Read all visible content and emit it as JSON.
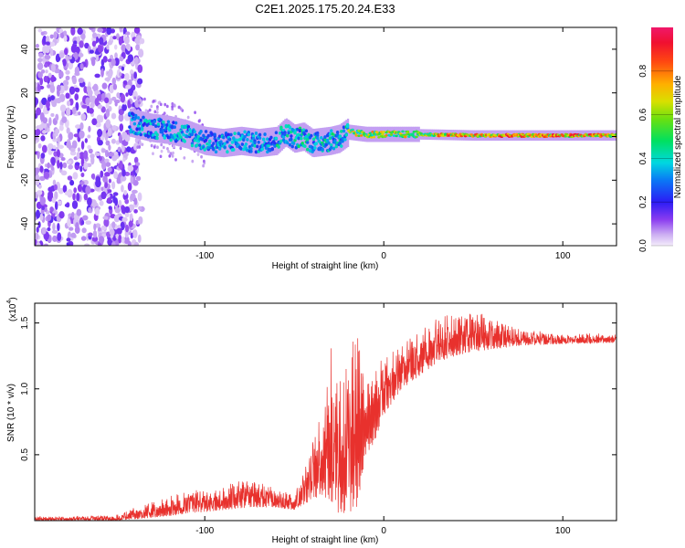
{
  "title": "C2E1.2025.175.20.24.E33",
  "chart_data": [
    {
      "type": "heatmap",
      "xlabel": "Height of straight line (km)",
      "ylabel": "Frequency (Hz)",
      "xlim": [
        -195,
        130
      ],
      "ylim": [
        -50,
        50
      ],
      "x_ticks": [
        -100,
        0,
        100
      ],
      "y_ticks": [
        -40,
        -20,
        0,
        20,
        40
      ],
      "ridge": [
        {
          "x": -140,
          "f": 6
        },
        {
          "x": -130,
          "f": 4
        },
        {
          "x": -120,
          "f": 3
        },
        {
          "x": -110,
          "f": 1
        },
        {
          "x": -100,
          "f": -2
        },
        {
          "x": -90,
          "f": -3
        },
        {
          "x": -80,
          "f": -2
        },
        {
          "x": -70,
          "f": -3
        },
        {
          "x": -60,
          "f": -2
        },
        {
          "x": -55,
          "f": 2
        },
        {
          "x": -50,
          "f": -1
        },
        {
          "x": -45,
          "f": 0
        },
        {
          "x": -40,
          "f": -3
        },
        {
          "x": -30,
          "f": -2
        },
        {
          "x": -25,
          "f": -1
        },
        {
          "x": -20,
          "f": 2
        },
        {
          "x": -10,
          "f": 1
        },
        {
          "x": 0,
          "f": 1
        },
        {
          "x": 20,
          "f": 1
        },
        {
          "x": 50,
          "f": 0.5
        },
        {
          "x": 80,
          "f": 0.5
        },
        {
          "x": 130,
          "f": 0.5
        }
      ],
      "colorbar": {
        "label": "Normalized spectral amplitude",
        "ticks": [
          "0.0",
          "0.2",
          "0.4",
          "0.6",
          "0.8"
        ],
        "range": [
          0,
          1
        ]
      }
    },
    {
      "type": "line",
      "xlabel": "Height of straight line (km)",
      "ylabel": "SNR (10 * v/v)",
      "y_multiplier_label": "(x10",
      "y_multiplier_exp": "4",
      "xlim": [
        -195,
        130
      ],
      "ylim": [
        0,
        1.65
      ],
      "x_ticks": [
        -100,
        0,
        100
      ],
      "y_ticks": [
        0.5,
        1.0,
        1.5
      ],
      "y_tick_labels": [
        "0.5",
        "1.0",
        "1.5"
      ],
      "color": "#e8312d",
      "envelope": [
        {
          "x": -195,
          "lo": 0.0,
          "hi": 0.03
        },
        {
          "x": -150,
          "lo": 0.0,
          "hi": 0.04
        },
        {
          "x": -130,
          "lo": 0.02,
          "hi": 0.15
        },
        {
          "x": -110,
          "lo": 0.05,
          "hi": 0.22
        },
        {
          "x": -90,
          "lo": 0.08,
          "hi": 0.27
        },
        {
          "x": -75,
          "lo": 0.1,
          "hi": 0.32
        },
        {
          "x": -60,
          "lo": 0.1,
          "hi": 0.25
        },
        {
          "x": -50,
          "lo": 0.08,
          "hi": 0.2
        },
        {
          "x": -45,
          "lo": 0.12,
          "hi": 0.35
        },
        {
          "x": -40,
          "lo": 0.15,
          "hi": 0.6
        },
        {
          "x": -35,
          "lo": 0.2,
          "hi": 0.85
        },
        {
          "x": -30,
          "lo": 0.15,
          "hi": 1.35
        },
        {
          "x": -25,
          "lo": 0.05,
          "hi": 1.2
        },
        {
          "x": -20,
          "lo": 0.05,
          "hi": 1.4
        },
        {
          "x": -15,
          "lo": 0.1,
          "hi": 1.5
        },
        {
          "x": -10,
          "lo": 0.5,
          "hi": 1.15
        },
        {
          "x": -5,
          "lo": 0.6,
          "hi": 1.2
        },
        {
          "x": 0,
          "lo": 0.8,
          "hi": 1.25
        },
        {
          "x": 10,
          "lo": 1.0,
          "hi": 1.35
        },
        {
          "x": 20,
          "lo": 1.1,
          "hi": 1.45
        },
        {
          "x": 30,
          "lo": 1.2,
          "hi": 1.55
        },
        {
          "x": 40,
          "lo": 1.25,
          "hi": 1.58
        },
        {
          "x": 50,
          "lo": 1.28,
          "hi": 1.6
        },
        {
          "x": 60,
          "lo": 1.3,
          "hi": 1.55
        },
        {
          "x": 70,
          "lo": 1.32,
          "hi": 1.48
        },
        {
          "x": 80,
          "lo": 1.33,
          "hi": 1.45
        },
        {
          "x": 100,
          "lo": 1.34,
          "hi": 1.42
        },
        {
          "x": 130,
          "lo": 1.35,
          "hi": 1.42
        }
      ]
    }
  ]
}
